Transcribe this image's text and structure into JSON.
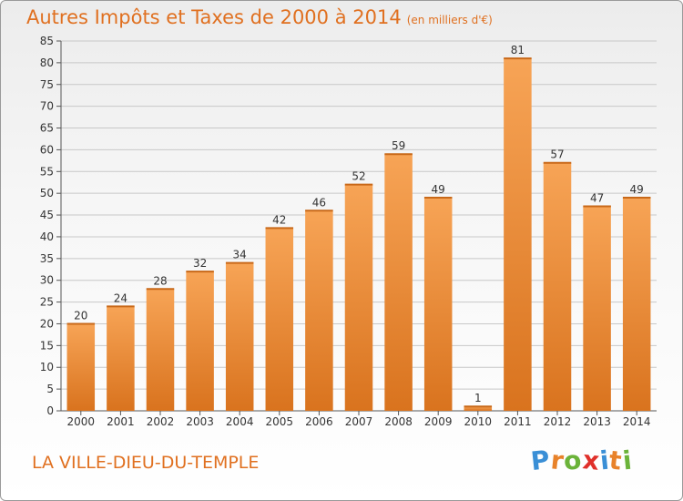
{
  "header": {
    "title": "Autres Impôts et Taxes de 2000 à 2014",
    "unit": "(en milliers d'€)"
  },
  "footer": {
    "commune": "LA VILLE-DIEU-DU-TEMPLE",
    "logo_letters": [
      "P",
      "r",
      "o",
      "x",
      "i",
      "t",
      "i"
    ],
    "logo_colors": [
      "#3a8fd6",
      "#e8822a",
      "#6bb33a",
      "#e0302a",
      "#3a8fd6",
      "#e8822a",
      "#6bb33a"
    ]
  },
  "colors": {
    "bar_top": "#f7a456",
    "bar_bottom": "#d9731e",
    "accent": "#e07020",
    "grid": "#c8c8c8"
  },
  "chart_data": {
    "type": "bar",
    "title": "Autres Impôts et Taxes de 2000 à 2014",
    "subtitle": "(en milliers d'€)",
    "xlabel": "",
    "ylabel": "",
    "categories": [
      "2000",
      "2001",
      "2002",
      "2003",
      "2004",
      "2005",
      "2006",
      "2007",
      "2008",
      "2009",
      "2010",
      "2011",
      "2012",
      "2013",
      "2014"
    ],
    "values": [
      20,
      24,
      28,
      32,
      34,
      42,
      46,
      52,
      59,
      49,
      1,
      81,
      57,
      47,
      49
    ],
    "ylim": [
      0,
      85
    ],
    "yticks": [
      0,
      5,
      10,
      15,
      20,
      25,
      30,
      35,
      40,
      45,
      50,
      55,
      60,
      65,
      70,
      75,
      80,
      85
    ],
    "grid": true
  }
}
